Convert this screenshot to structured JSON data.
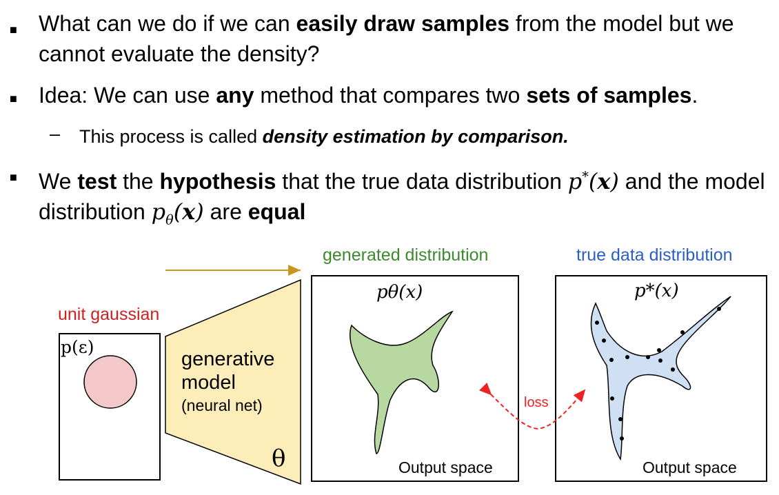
{
  "bullets": [
    {
      "parts": [
        {
          "t": "What can we do if we can ",
          "b": false
        },
        {
          "t": "easily draw samples",
          "b": true
        },
        {
          "t": " from the model but we cannot evaluate the density?",
          "b": false
        }
      ]
    },
    {
      "parts": [
        {
          "t": "Idea: We can use ",
          "b": false
        },
        {
          "t": "any",
          "b": true
        },
        {
          "t": " method that compares two ",
          "b": false
        },
        {
          "t": "sets of samples",
          "b": true
        },
        {
          "t": ".",
          "b": false
        }
      ]
    },
    {
      "sub": true,
      "parts": [
        {
          "t": "This process is called ",
          "b": false
        },
        {
          "t": "density estimation by comparison.",
          "b": true,
          "i": true
        }
      ]
    },
    {
      "parts": [
        {
          "t": "We ",
          "b": false
        },
        {
          "t": "test",
          "b": true
        },
        {
          "t": " the ",
          "b": false
        },
        {
          "t": "hypothesis",
          "b": true
        },
        {
          "t": " that the true data distribution ",
          "b": false
        },
        {
          "t": "p*(x)",
          "math": "pstar"
        },
        {
          "t": " and the model distribution ",
          "b": false
        },
        {
          "t": "pθ(x)",
          "math": "ptheta"
        },
        {
          "t": " are ",
          "b": false
        },
        {
          "t": "equal",
          "b": true
        }
      ]
    }
  ],
  "bullet_symbol": "■",
  "dash_symbol": "–",
  "diagram": {
    "unit_gaussian_label": "unit gaussian",
    "p_eps_label": "p(ε)",
    "model_line1": "generative",
    "model_line2": "model",
    "model_line3": "(neural net)",
    "theta_label": "θ",
    "generated_label": "generated distribution",
    "true_label": "true data distribution",
    "p_theta_label": "pθ(x)",
    "p_star_label": "p*(x)",
    "output_space_1": "Output space",
    "output_space_2": "Output space",
    "loss_label": "loss"
  },
  "colors": {
    "unit_gaussian": "#cc2222",
    "generated": "#3c8a2e",
    "true_data": "#2a5fc4",
    "circle_fill": "#f4c7c9",
    "model_fill": "#fdeeb9",
    "green_fill": "#b7d8a1",
    "blue_fill": "#cfe0f4",
    "arrow_orange": "#c8961e",
    "loss_red": "#ee2222"
  }
}
